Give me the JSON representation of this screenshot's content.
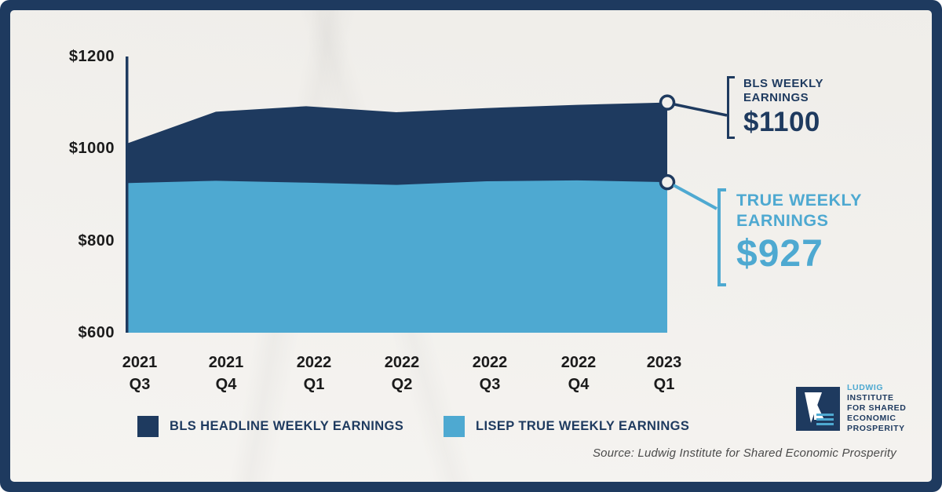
{
  "colors": {
    "navy": "#1e3a5f",
    "blue": "#4ea9d1",
    "paper": "#f2f0ec",
    "ink": "#1b1b1b",
    "source_gray": "#4b4b4b"
  },
  "chart_data": {
    "type": "area",
    "title": "",
    "x_labels": [
      {
        "year": "2021",
        "quarter": "Q3"
      },
      {
        "year": "2021",
        "quarter": "Q4"
      },
      {
        "year": "2022",
        "quarter": "Q1"
      },
      {
        "year": "2022",
        "quarter": "Q2"
      },
      {
        "year": "2022",
        "quarter": "Q3"
      },
      {
        "year": "2022",
        "quarter": "Q4"
      },
      {
        "year": "2023",
        "quarter": "Q1"
      }
    ],
    "ylim": [
      600,
      1200
    ],
    "yticks": [
      1200,
      1000,
      800,
      600
    ],
    "ytick_labels": [
      "$1200",
      "$1000",
      "$800",
      "$600"
    ],
    "series": [
      {
        "name": "BLS HEADLINE WEEKLY EARNINGS",
        "color": "#1e3a5f",
        "values": [
          1010,
          1080,
          1092,
          1079,
          1088,
          1095,
          1100
        ]
      },
      {
        "name": "LISEP TRUE WEEKLY EARNINGS",
        "color": "#4ea9d1",
        "values": [
          925,
          930,
          926,
          921,
          929,
          931,
          927
        ]
      }
    ],
    "grid": false,
    "legend_position": "bottom"
  },
  "annotations": {
    "bls": {
      "line1": "BLS WEEKLY",
      "line2": "EARNINGS",
      "value": "$1100"
    },
    "true": {
      "line1": "TRUE WEEKLY",
      "line2": "EARNINGS",
      "value": "$927"
    }
  },
  "source": "Source: Ludwig Institute for Shared Economic Prosperity",
  "logo": {
    "line1": "LUDWIG",
    "line2": "INSTITUTE",
    "line3": "FOR SHARED",
    "line4": "ECONOMIC",
    "line5": "PROSPERITY"
  }
}
